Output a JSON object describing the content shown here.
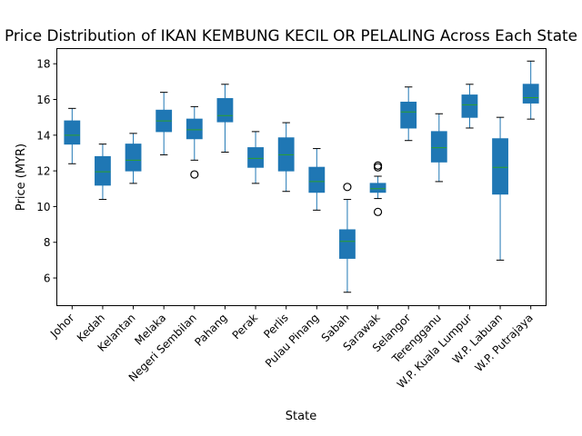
{
  "chart_data": {
    "type": "box",
    "title": "Price Distribution of IKAN KEMBUNG KECIL OR PELALING Across Each State",
    "xlabel": "State",
    "ylabel": "Price (MYR)",
    "ylim": [
      4.45,
      18.85
    ],
    "yticks": [
      6,
      8,
      10,
      12,
      14,
      16,
      18
    ],
    "grid": false,
    "legend": "none",
    "colors": {
      "box_fill": "#1f77b4",
      "median": "#2ca02c",
      "line": "#1f77b4",
      "text": "#000000"
    },
    "categories": [
      "Johor",
      "Kedah",
      "Kelantan",
      "Melaka",
      "Negeri Sembilan",
      "Pahang",
      "Perak",
      "Perlis",
      "Pulau Pinang",
      "Sabah",
      "Sarawak",
      "Selangor",
      "Terengganu",
      "W.P. Kuala Lumpur",
      "W.P. Labuan",
      "W.P. Putrajaya"
    ],
    "boxes": [
      {
        "state": "Johor",
        "whislo": 12.4,
        "q1": 13.5,
        "med": 14.0,
        "q3": 14.8,
        "whishi": 15.5,
        "fliers": []
      },
      {
        "state": "Kedah",
        "whislo": 10.4,
        "q1": 11.2,
        "med": 11.95,
        "q3": 12.8,
        "whishi": 13.5,
        "fliers": []
      },
      {
        "state": "Kelantan",
        "whislo": 11.3,
        "q1": 12.0,
        "med": 12.6,
        "q3": 13.5,
        "whishi": 14.1,
        "fliers": []
      },
      {
        "state": "Melaka",
        "whislo": 12.9,
        "q1": 14.2,
        "med": 14.8,
        "q3": 15.4,
        "whishi": 16.4,
        "fliers": []
      },
      {
        "state": "Negeri Sembilan",
        "whislo": 12.6,
        "q1": 13.8,
        "med": 14.3,
        "q3": 14.9,
        "whishi": 15.6,
        "fliers": [
          11.8
        ]
      },
      {
        "state": "Pahang",
        "whislo": 13.05,
        "q1": 14.75,
        "med": 15.1,
        "q3": 16.05,
        "whishi": 16.85,
        "fliers": []
      },
      {
        "state": "Perak",
        "whislo": 11.3,
        "q1": 12.2,
        "med": 12.7,
        "q3": 13.3,
        "whishi": 14.2,
        "fliers": []
      },
      {
        "state": "Perlis",
        "whislo": 10.85,
        "q1": 12.0,
        "med": 12.9,
        "q3": 13.85,
        "whishi": 14.7,
        "fliers": []
      },
      {
        "state": "Pulau Pinang",
        "whislo": 9.8,
        "q1": 10.8,
        "med": 11.4,
        "q3": 12.2,
        "whishi": 13.25,
        "fliers": []
      },
      {
        "state": "Sabah",
        "whislo": 5.2,
        "q1": 7.1,
        "med": 8.05,
        "q3": 8.7,
        "whishi": 10.4,
        "fliers": [
          11.1
        ]
      },
      {
        "state": "Sarawak",
        "whislo": 10.45,
        "q1": 10.8,
        "med": 11.0,
        "q3": 11.3,
        "whishi": 11.7,
        "fliers": [
          12.2,
          12.3,
          9.7
        ]
      },
      {
        "state": "Selangor",
        "whislo": 13.7,
        "q1": 14.4,
        "med": 15.3,
        "q3": 15.85,
        "whishi": 16.7,
        "fliers": []
      },
      {
        "state": "Terengganu",
        "whislo": 11.4,
        "q1": 12.5,
        "med": 13.3,
        "q3": 14.2,
        "whishi": 15.2,
        "fliers": []
      },
      {
        "state": "W.P. Kuala Lumpur",
        "whislo": 14.4,
        "q1": 15.0,
        "med": 15.7,
        "q3": 16.25,
        "whishi": 16.85,
        "fliers": []
      },
      {
        "state": "W.P. Labuan",
        "whislo": 7.0,
        "q1": 10.7,
        "med": 12.2,
        "q3": 13.8,
        "whishi": 15.0,
        "fliers": []
      },
      {
        "state": "W.P. Putrajaya",
        "whislo": 14.9,
        "q1": 15.8,
        "med": 16.1,
        "q3": 16.85,
        "whishi": 18.15,
        "fliers": []
      }
    ]
  }
}
